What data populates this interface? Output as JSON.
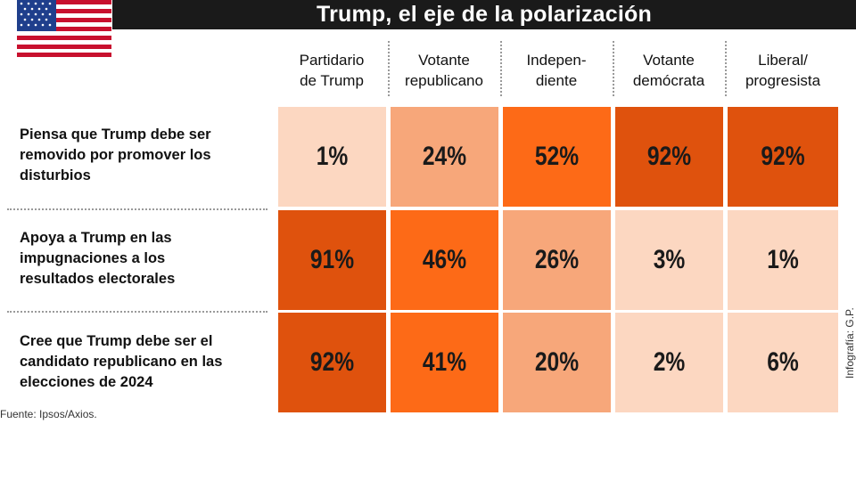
{
  "header": {
    "title": "Trump, el eje de la polarización"
  },
  "footer": {
    "source": "Fuente: Ipsos/Axios.",
    "credit": "Infografía: G.P."
  },
  "colors": {
    "lightest": "#fcd7c1",
    "light": "#f7a77a",
    "mid": "#fd6a17",
    "dark": "#df520d",
    "text": "#1a1a1a"
  },
  "chart_data": {
    "type": "heatmap",
    "title": "Trump, el eje de la polarización",
    "columns": [
      {
        "line1": "Partidario",
        "line2": "de Trump"
      },
      {
        "line1": "Votante",
        "line2": "republicano"
      },
      {
        "line1": "Indepen-",
        "line2": "diente"
      },
      {
        "line1": "Votante",
        "line2": "demócrata"
      },
      {
        "line1": "Liberal/",
        "line2": "progresista"
      }
    ],
    "rows": [
      {
        "lines": [
          "Piensa que Trump debe ser",
          "removido por promover los",
          "disturbios"
        ],
        "values": [
          "1%",
          "24%",
          "52%",
          "92%",
          "92%"
        ],
        "shades": [
          "lightest",
          "light",
          "mid",
          "dark",
          "dark"
        ]
      },
      {
        "lines": [
          "Apoya a Trump en las",
          "impugnaciones a los",
          "resultados electorales"
        ],
        "values": [
          "91%",
          "46%",
          "26%",
          "3%",
          "1%"
        ],
        "shades": [
          "dark",
          "mid",
          "light",
          "lightest",
          "lightest"
        ]
      },
      {
        "lines": [
          "Cree que Trump debe ser el",
          "candidato republicano en las",
          "elecciones de 2024"
        ],
        "values": [
          "92%",
          "41%",
          "20%",
          "2%",
          "6%"
        ],
        "shades": [
          "dark",
          "mid",
          "light",
          "lightest",
          "lightest"
        ]
      }
    ]
  }
}
